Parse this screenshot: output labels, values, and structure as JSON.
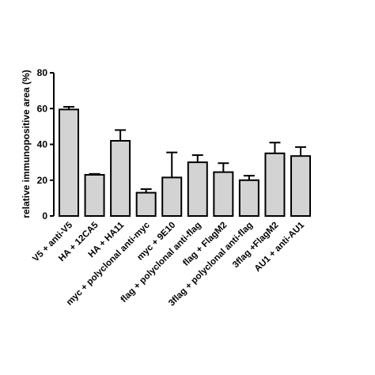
{
  "chart_data": {
    "type": "bar",
    "title": "",
    "xlabel": "",
    "ylabel": "relative immunopositive area (%)",
    "ylim": [
      0,
      80
    ],
    "yticks": [
      0,
      20,
      40,
      60,
      80
    ],
    "grid": false,
    "bar_color": "#d3d3d3",
    "edge_color": "#000000",
    "categories": [
      "V5 + anti-V5",
      "HA + 12CA5",
      "HA + HA11",
      "myc + polyclonal anti-myc",
      "myc + 9E10",
      "flag + polyclonal anti-flag",
      "flag + FlagM2",
      "3flag + polyclonal anti-flag",
      "3flag +FlagM2",
      "AU1 + anti-AU1"
    ],
    "values": [
      59.5,
      23,
      42,
      13,
      21.5,
      30,
      24.5,
      20,
      35,
      33.5
    ],
    "errors": [
      1.5,
      0.5,
      6,
      2,
      14,
      4,
      5,
      2.5,
      6,
      5
    ]
  }
}
